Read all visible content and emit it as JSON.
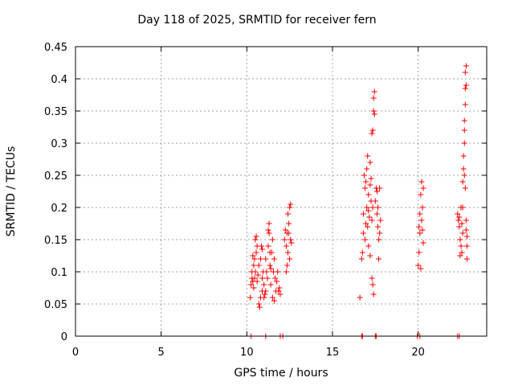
{
  "chart_data": {
    "type": "scatter",
    "title": "Day 118 of 2025, SRMTID for receiver fern",
    "xlabel": "GPS time / hours",
    "ylabel": "SRMTID / TECUs",
    "xlim": [
      0,
      24
    ],
    "ylim": [
      0,
      0.45
    ],
    "xticks": [
      "0",
      "5",
      "10",
      "15",
      "20"
    ],
    "yticks": [
      "0",
      "0.05",
      "0.1",
      "0.15",
      "0.2",
      "0.25",
      "0.3",
      "0.35",
      "0.4",
      "0.45"
    ],
    "grid": true,
    "marker": "+",
    "color": "#ff0000",
    "series": [
      {
        "points": [
          [
            10.25,
            0.0
          ],
          [
            11.1,
            0.0
          ],
          [
            11.95,
            0.0
          ],
          [
            12.1,
            0.0
          ],
          [
            16.7,
            0.0
          ],
          [
            16.75,
            0.0
          ],
          [
            17.5,
            0.0
          ],
          [
            17.55,
            0.0
          ],
          [
            19.95,
            0.0
          ],
          [
            20.1,
            0.0
          ],
          [
            22.3,
            0.0
          ],
          [
            22.4,
            0.0
          ],
          [
            10.2,
            0.06
          ],
          [
            10.25,
            0.08
          ],
          [
            10.3,
            0.09
          ],
          [
            10.3,
            0.1
          ],
          [
            10.35,
            0.085
          ],
          [
            10.4,
            0.11
          ],
          [
            10.4,
            0.075
          ],
          [
            10.45,
            0.12
          ],
          [
            10.45,
            0.09
          ],
          [
            10.5,
            0.15
          ],
          [
            10.5,
            0.1
          ],
          [
            10.55,
            0.155
          ],
          [
            10.55,
            0.13
          ],
          [
            10.6,
            0.14
          ],
          [
            10.6,
            0.085
          ],
          [
            10.65,
            0.095
          ],
          [
            10.7,
            0.11
          ],
          [
            10.7,
            0.05
          ],
          [
            10.75,
            0.045
          ],
          [
            10.8,
            0.12
          ],
          [
            10.8,
            0.06
          ],
          [
            10.85,
            0.14
          ],
          [
            10.9,
            0.09
          ],
          [
            10.9,
            0.07
          ],
          [
            10.95,
            0.1
          ],
          [
            11.0,
            0.06
          ],
          [
            11.0,
            0.08
          ],
          [
            11.05,
            0.065
          ],
          [
            11.1,
            0.07
          ],
          [
            11.1,
            0.12
          ],
          [
            11.15,
            0.1
          ],
          [
            11.2,
            0.09
          ],
          [
            11.25,
            0.14
          ],
          [
            11.3,
            0.16
          ],
          [
            11.35,
            0.11
          ],
          [
            11.4,
            0.08
          ],
          [
            11.45,
            0.13
          ],
          [
            11.5,
            0.15
          ],
          [
            11.5,
            0.06
          ],
          [
            11.55,
            0.1
          ],
          [
            11.6,
            0.12
          ],
          [
            11.6,
            0.055
          ],
          [
            11.65,
            0.09
          ],
          [
            11.7,
            0.07
          ],
          [
            11.75,
            0.085
          ],
          [
            11.8,
            0.1
          ],
          [
            11.85,
            0.07
          ],
          [
            11.9,
            0.075
          ],
          [
            11.95,
            0.065
          ],
          [
            11.3,
            0.175
          ],
          [
            11.25,
            0.165
          ],
          [
            11.35,
            0.13
          ],
          [
            11.4,
            0.105
          ],
          [
            10.9,
            0.135
          ],
          [
            10.35,
            0.125
          ],
          [
            12.2,
            0.15
          ],
          [
            12.25,
            0.165
          ],
          [
            12.3,
            0.14
          ],
          [
            12.35,
            0.16
          ],
          [
            12.4,
            0.19
          ],
          [
            12.4,
            0.13
          ],
          [
            12.45,
            0.175
          ],
          [
            12.5,
            0.2
          ],
          [
            12.5,
            0.12
          ],
          [
            12.55,
            0.205
          ],
          [
            12.55,
            0.15
          ],
          [
            12.6,
            0.145
          ],
          [
            12.3,
            0.1
          ],
          [
            12.35,
            0.11
          ],
          [
            12.45,
            0.16
          ],
          [
            16.6,
            0.06
          ],
          [
            16.7,
            0.12
          ],
          [
            16.75,
            0.13
          ],
          [
            16.8,
            0.19
          ],
          [
            16.85,
            0.25
          ],
          [
            16.9,
            0.23
          ],
          [
            16.9,
            0.15
          ],
          [
            16.95,
            0.24
          ],
          [
            17.0,
            0.26
          ],
          [
            17.0,
            0.2
          ],
          [
            17.05,
            0.28
          ],
          [
            17.05,
            0.17
          ],
          [
            17.1,
            0.22
          ],
          [
            17.1,
            0.14
          ],
          [
            17.15,
            0.185
          ],
          [
            17.2,
            0.125
          ],
          [
            17.2,
            0.27
          ],
          [
            17.25,
            0.245
          ],
          [
            17.25,
            0.21
          ],
          [
            17.3,
            0.18
          ],
          [
            17.3,
            0.09
          ],
          [
            17.35,
            0.08
          ],
          [
            17.35,
            0.2
          ],
          [
            17.4,
            0.065
          ],
          [
            17.3,
            0.315
          ],
          [
            17.35,
            0.32
          ],
          [
            17.4,
            0.35
          ],
          [
            17.4,
            0.37
          ],
          [
            17.45,
            0.38
          ],
          [
            17.45,
            0.345
          ],
          [
            17.5,
            0.21
          ],
          [
            17.55,
            0.23
          ],
          [
            17.6,
            0.19
          ],
          [
            17.65,
            0.2
          ],
          [
            17.7,
            0.15
          ],
          [
            17.7,
            0.12
          ],
          [
            17.75,
            0.16
          ],
          [
            17.75,
            0.23
          ],
          [
            17.8,
            0.18
          ],
          [
            16.8,
            0.16
          ],
          [
            16.95,
            0.175
          ],
          [
            17.1,
            0.195
          ],
          [
            17.2,
            0.235
          ],
          [
            17.6,
            0.225
          ],
          [
            17.65,
            0.17
          ],
          [
            20.0,
            0.11
          ],
          [
            20.05,
            0.13
          ],
          [
            20.1,
            0.16
          ],
          [
            20.1,
            0.19
          ],
          [
            20.15,
            0.22
          ],
          [
            20.2,
            0.24
          ],
          [
            20.2,
            0.18
          ],
          [
            20.25,
            0.2
          ],
          [
            20.3,
            0.23
          ],
          [
            20.3,
            0.145
          ],
          [
            20.05,
            0.17
          ],
          [
            20.15,
            0.105
          ],
          [
            20.25,
            0.165
          ],
          [
            22.3,
            0.19
          ],
          [
            22.35,
            0.18
          ],
          [
            22.4,
            0.17
          ],
          [
            22.45,
            0.15
          ],
          [
            22.5,
            0.14
          ],
          [
            22.5,
            0.2
          ],
          [
            22.55,
            0.13
          ],
          [
            22.55,
            0.175
          ],
          [
            22.6,
            0.16
          ],
          [
            22.6,
            0.24
          ],
          [
            22.65,
            0.26
          ],
          [
            22.65,
            0.28
          ],
          [
            22.7,
            0.3
          ],
          [
            22.7,
            0.32
          ],
          [
            22.7,
            0.335
          ],
          [
            22.75,
            0.36
          ],
          [
            22.75,
            0.385
          ],
          [
            22.75,
            0.41
          ],
          [
            22.8,
            0.42
          ],
          [
            22.8,
            0.39
          ],
          [
            22.75,
            0.23
          ],
          [
            22.8,
            0.18
          ],
          [
            22.85,
            0.14
          ],
          [
            22.85,
            0.12
          ],
          [
            22.85,
            0.155
          ],
          [
            22.4,
            0.185
          ],
          [
            22.45,
            0.125
          ],
          [
            22.6,
            0.2
          ],
          [
            22.7,
            0.25
          ],
          [
            22.8,
            0.165
          ]
        ]
      }
    ]
  }
}
